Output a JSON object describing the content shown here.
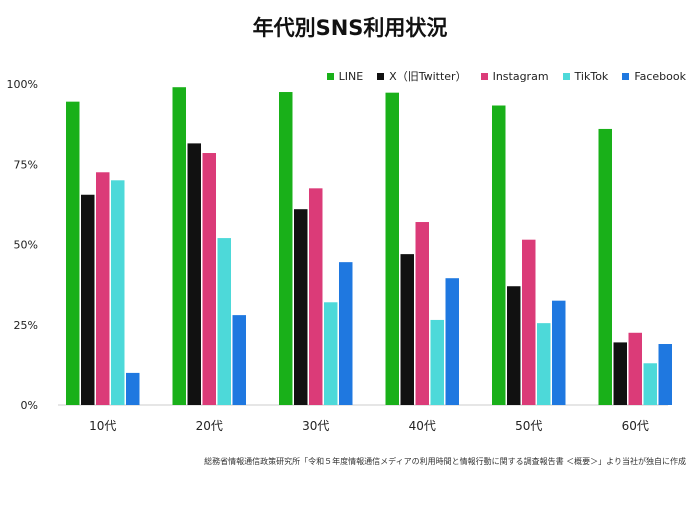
{
  "chart_data": {
    "type": "bar",
    "title": "年代別SNS利用状況",
    "categories": [
      "10代",
      "20代",
      "30代",
      "40代",
      "50代",
      "60代"
    ],
    "series": [
      {
        "name": "LINE",
        "color": "#19b019",
        "values": [
          94.5,
          99.0,
          97.5,
          97.3,
          93.3,
          86.0
        ]
      },
      {
        "name": "X（旧Twitter）",
        "color": "#111111",
        "values": [
          65.5,
          81.5,
          61.0,
          47.0,
          37.0,
          19.5
        ]
      },
      {
        "name": "Instagram",
        "color": "#db3b78",
        "values": [
          72.5,
          78.5,
          67.5,
          57.0,
          51.5,
          22.5
        ]
      },
      {
        "name": "TikTok",
        "color": "#4dd9d9",
        "values": [
          70.0,
          52.0,
          32.0,
          26.5,
          25.5,
          13.0
        ]
      },
      {
        "name": "Facebook",
        "color": "#1f78e0",
        "values": [
          10.0,
          28.0,
          44.5,
          39.5,
          32.5,
          19.0
        ]
      }
    ],
    "yticks": [
      "0%",
      "25%",
      "50%",
      "75%",
      "100%"
    ],
    "ylim": [
      0,
      100
    ],
    "xlabel": "",
    "ylabel": "",
    "legend_position": "top-right",
    "grid": false
  },
  "source_note": "総務省情報通信政策研究所「令和５年度情報通信メディアの利用時間と情報行動に関する調査報告書 ＜概要＞」より当社が独自に作成"
}
